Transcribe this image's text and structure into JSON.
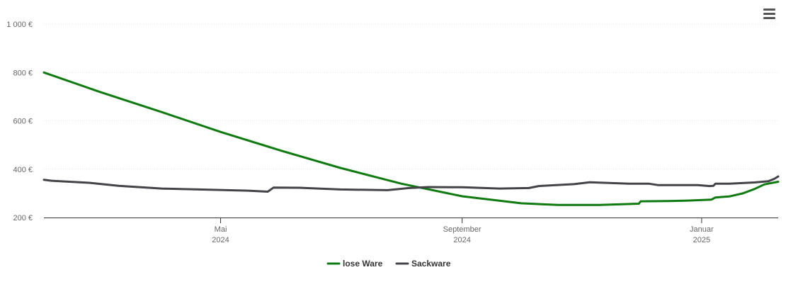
{
  "menu": {
    "icon": "hamburger-menu-icon"
  },
  "chart_data": {
    "type": "line",
    "title": "",
    "xlabel": "",
    "ylabel": "",
    "ylim": [
      200,
      1000
    ],
    "yticks": [
      {
        "value": 200,
        "label": "200 €"
      },
      {
        "value": 400,
        "label": "400 €"
      },
      {
        "value": 600,
        "label": "600 €"
      },
      {
        "value": 800,
        "label": "800 €"
      },
      {
        "value": 1000,
        "label": "1 000 €"
      }
    ],
    "xlim": [
      "2024-02-01",
      "2025-02-09"
    ],
    "xticks": [
      {
        "date": "2024-05-01",
        "month": "Mai",
        "year": "2024"
      },
      {
        "date": "2024-09-01",
        "month": "September",
        "year": "2024"
      },
      {
        "date": "2025-01-01",
        "month": "Januar",
        "year": "2025"
      }
    ],
    "grid": true,
    "legend_position": "bottom-center",
    "series": [
      {
        "name": "lose Ware",
        "color": "#0f7a0f",
        "points": [
          [
            "2024-02-01",
            800
          ],
          [
            "2024-03-01",
            718
          ],
          [
            "2024-04-01",
            636
          ],
          [
            "2024-05-01",
            554
          ],
          [
            "2024-06-01",
            476
          ],
          [
            "2024-07-01",
            405
          ],
          [
            "2024-08-01",
            340
          ],
          [
            "2024-09-01",
            288
          ],
          [
            "2024-10-01",
            259
          ],
          [
            "2024-10-20",
            252
          ],
          [
            "2024-11-10",
            252
          ],
          [
            "2024-11-30",
            257
          ],
          [
            "2024-12-01",
            267
          ],
          [
            "2024-12-15",
            268
          ],
          [
            "2024-12-25",
            270
          ],
          [
            "2025-01-06",
            274
          ],
          [
            "2025-01-08",
            283
          ],
          [
            "2025-01-15",
            287
          ],
          [
            "2025-01-22",
            300
          ],
          [
            "2025-01-28",
            318
          ],
          [
            "2025-02-02",
            337
          ],
          [
            "2025-02-09",
            348
          ]
        ]
      },
      {
        "name": "Sackware",
        "color": "#434348",
        "points": [
          [
            "2024-02-01",
            356
          ],
          [
            "2024-02-05",
            352
          ],
          [
            "2024-02-25",
            343
          ],
          [
            "2024-03-10",
            331
          ],
          [
            "2024-04-01",
            320
          ],
          [
            "2024-04-20",
            316
          ],
          [
            "2024-05-15",
            311
          ],
          [
            "2024-05-25",
            307
          ],
          [
            "2024-05-28",
            324
          ],
          [
            "2024-06-10",
            323
          ],
          [
            "2024-07-01",
            316
          ],
          [
            "2024-07-25",
            313
          ],
          [
            "2024-08-05",
            322
          ],
          [
            "2024-08-15",
            326
          ],
          [
            "2024-09-01",
            325
          ],
          [
            "2024-09-20",
            320
          ],
          [
            "2024-10-05",
            322
          ],
          [
            "2024-10-10",
            330
          ],
          [
            "2024-10-28",
            338
          ],
          [
            "2024-11-05",
            346
          ],
          [
            "2024-11-25",
            340
          ],
          [
            "2024-12-05",
            340
          ],
          [
            "2024-12-10",
            334
          ],
          [
            "2024-12-30",
            334
          ],
          [
            "2025-01-05",
            330
          ],
          [
            "2025-01-07",
            331
          ],
          [
            "2025-01-08",
            340
          ],
          [
            "2025-01-15",
            340
          ],
          [
            "2025-01-28",
            345
          ],
          [
            "2025-02-04",
            350
          ],
          [
            "2025-02-07",
            360
          ],
          [
            "2025-02-09",
            370
          ]
        ]
      }
    ]
  }
}
